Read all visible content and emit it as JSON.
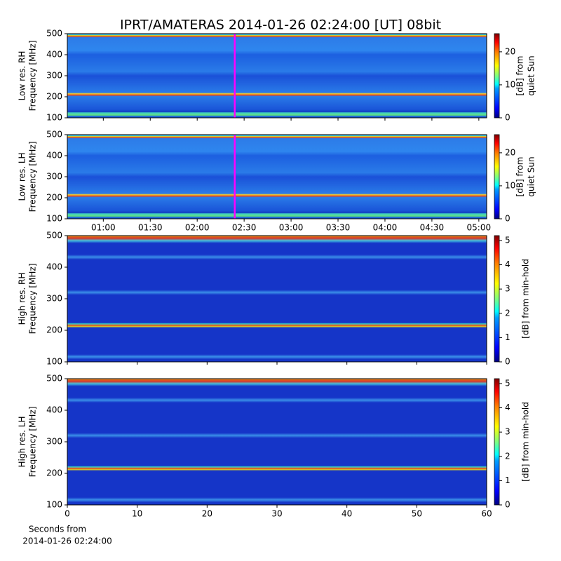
{
  "title": "IPRT/AMATERAS 2014-01-26 02:24:00 [UT]   08bit",
  "chart_data": [
    {
      "type": "heatmap",
      "ylabel": [
        "Low res. RH",
        "Frequency [MHz]"
      ],
      "ylim": [
        100,
        500
      ],
      "yticks": [
        100,
        200,
        300,
        400,
        500
      ],
      "xlim": [
        "00:37",
        "05:05"
      ],
      "xticks": [
        "01:00",
        "01:30",
        "02:00",
        "02:30",
        "03:00",
        "03:30",
        "04:00",
        "04:30",
        "05:00"
      ],
      "xticklabels": false,
      "marker": {
        "x": "02:24",
        "color": "#ff00ff"
      },
      "colormap": "jet",
      "colorbar": {
        "label": [
          "[dB] from",
          "quiet Sun"
        ],
        "lim": [
          0,
          25.5
        ],
        "ticks": [
          0,
          10,
          20
        ]
      }
    },
    {
      "type": "heatmap",
      "ylabel": [
        "Low res. LH",
        "Frequency [MHz]"
      ],
      "ylim": [
        100,
        500
      ],
      "yticks": [
        100,
        200,
        300,
        400,
        500
      ],
      "xlim": [
        "00:37",
        "05:05"
      ],
      "xticks": [
        "01:00",
        "01:30",
        "02:00",
        "02:30",
        "03:00",
        "03:30",
        "04:00",
        "04:30",
        "05:00"
      ],
      "xticklabels": true,
      "marker": {
        "x": "02:24",
        "color": "#ff00ff"
      },
      "colormap": "jet",
      "colorbar": {
        "label": [
          "[dB] from",
          "quiet Sun"
        ],
        "lim": [
          0,
          25.5
        ],
        "ticks": [
          0,
          10,
          20
        ]
      }
    },
    {
      "type": "heatmap",
      "ylabel": [
        "High res. RH",
        "Frequency [MHz]"
      ],
      "ylim": [
        100,
        500
      ],
      "yticks": [
        100,
        200,
        300,
        400,
        500
      ],
      "xlim": [
        0,
        60
      ],
      "xticks": [
        0,
        10,
        20,
        30,
        40,
        50,
        60
      ],
      "xticklabels": false,
      "colormap": "jet",
      "colorbar": {
        "label": [
          "[dB] from min-hold"
        ],
        "lim": [
          0,
          5.2
        ],
        "ticks": [
          0,
          1,
          2,
          3,
          4,
          5
        ]
      }
    },
    {
      "type": "heatmap",
      "ylabel": [
        "High res. LH",
        "Frequency [MHz]"
      ],
      "ylim": [
        100,
        500
      ],
      "yticks": [
        100,
        200,
        300,
        400,
        500
      ],
      "xlim": [
        0,
        60
      ],
      "xticks": [
        0,
        10,
        20,
        30,
        40,
        50,
        60
      ],
      "xticklabels": true,
      "colormap": "jet",
      "xlabel": [
        "Seconds from",
        "2014-01-26 02:24:00"
      ],
      "colorbar": {
        "label": [
          "[dB] from min-hold"
        ],
        "lim": [
          0,
          5.2
        ],
        "ticks": [
          0,
          1,
          2,
          3,
          4,
          5
        ]
      }
    }
  ]
}
